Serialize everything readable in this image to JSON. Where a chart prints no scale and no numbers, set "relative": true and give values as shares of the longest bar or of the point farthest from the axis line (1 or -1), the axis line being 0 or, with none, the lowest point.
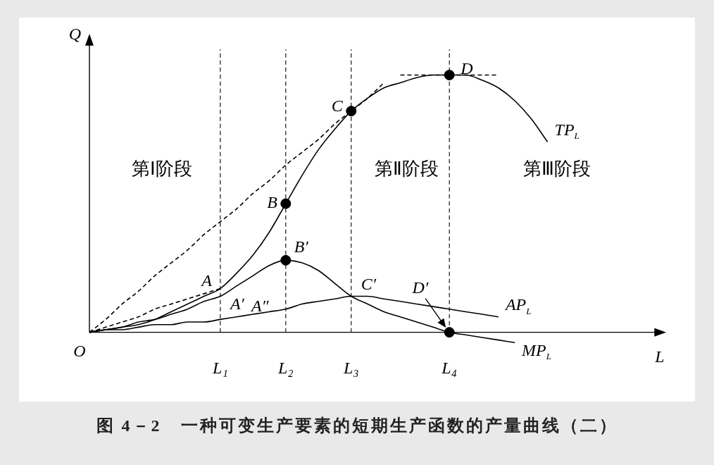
{
  "chart_data": {
    "type": "line",
    "title": "图 4－2　一种可变生产要素的短期生产函数的产量曲线（二）",
    "xlabel": "L",
    "ylabel": "Q",
    "relative": true,
    "tick_labels": "x",
    "grid": false,
    "legend": false,
    "categories": [
      null,
      null,
      null,
      null,
      null,
      null,
      null,
      null,
      "L₁",
      null,
      null,
      null,
      "L₂",
      null,
      null,
      null,
      "L₃",
      null,
      null,
      null,
      null,
      null,
      "L₄",
      null,
      null,
      null,
      null,
      null,
      null,
      null,
      null,
      null,
      null,
      null,
      null
    ],
    "series": [
      {
        "name": "TP$_{L}$",
        "color": "#000000",
        "line_style": "solid",
        "values": [
          0,
          0.01,
          0.02,
          0.03,
          0.05,
          0.08,
          0.11,
          0.14,
          0.17,
          0.23,
          0.3,
          0.39,
          0.5,
          0.61,
          0.71,
          0.79,
          0.86,
          0.91,
          0.95,
          0.97,
          0.99,
          1,
          1,
          1,
          0.98,
          0.95,
          0.9,
          0.83,
          0.74,
          null,
          null,
          null,
          null,
          null,
          null
        ]
      },
      {
        "name": "AP$_{L}$",
        "color": "#000000",
        "line_style": "solid",
        "values": [
          0,
          0.01,
          0.01,
          0.02,
          0.03,
          0.03,
          0.04,
          0.04,
          0.05,
          0.06,
          0.07,
          0.08,
          0.09,
          0.11,
          0.12,
          0.13,
          0.14,
          0.14,
          0.13,
          0.12,
          0.11,
          0.1,
          0.09,
          0.08,
          0.07,
          0.06,
          null,
          null,
          null,
          null,
          null,
          null,
          null,
          null,
          null
        ]
      },
      {
        "name": "MP$_{L}$",
        "color": "#000000",
        "line_style": "solid",
        "values": [
          0,
          0.01,
          0.02,
          0.04,
          0.05,
          0.07,
          0.09,
          0.12,
          0.14,
          0.18,
          0.22,
          0.26,
          0.28,
          0.27,
          0.24,
          0.19,
          0.14,
          0.11,
          0.08,
          0.06,
          0.04,
          0.02,
          0,
          -0.01,
          -0.02,
          -0.03,
          -0.04,
          null,
          null,
          null,
          null,
          null,
          null,
          null,
          null
        ]
      },
      {
        "color": "#000000",
        "line_style": "dashed",
        "values": [
          0,
          0.02,
          0.04,
          0.06,
          0.09,
          0.11,
          0.13,
          0.15,
          0.17,
          null,
          null,
          null,
          null,
          null,
          null,
          null,
          null,
          null,
          null,
          null,
          null,
          null,
          null,
          null,
          null,
          null,
          null,
          null,
          null,
          null,
          null,
          null,
          null,
          null,
          null
        ]
      },
      {
        "color": "#000000",
        "line_style": "dashed",
        "values": [
          0,
          0.05,
          0.11,
          0.16,
          0.22,
          0.27,
          0.32,
          0.38,
          0.43,
          0.48,
          0.54,
          0.59,
          0.65,
          0.7,
          0.75,
          0.81,
          0.86,
          0.91,
          0.97,
          null,
          null,
          null,
          null,
          null,
          null,
          null,
          null,
          null,
          null,
          null,
          null,
          null,
          null,
          null,
          null
        ]
      },
      {
        "color": "#000000",
        "line_style": "dashed",
        "values": [
          null,
          null,
          null,
          null,
          null,
          null,
          null,
          null,
          null,
          null,
          null,
          null,
          null,
          null,
          null,
          null,
          null,
          null,
          null,
          1,
          1,
          1,
          1,
          1,
          1,
          1,
          null,
          null,
          null,
          null,
          null,
          null,
          null,
          null,
          null
        ]
      },
      {
        "type": "scatter",
        "color": "#000000",
        "marker": "circle",
        "x": [
          "L₂",
          "L₂",
          "L₃",
          "L₄",
          "L₄"
        ],
        "values": [
          0.5,
          0.28,
          0.86,
          1,
          0
        ]
      }
    ],
    "ref_lines": [
      {
        "axis": "x",
        "value": "L₁",
        "line_style": "dashed"
      },
      {
        "axis": "x",
        "value": "L₂",
        "line_style": "dashed"
      },
      {
        "axis": "x",
        "value": "L₃",
        "line_style": "dashed"
      },
      {
        "axis": "x",
        "value": "L₄",
        "line_style": "dashed"
      }
    ],
    "annotations": [
      "第Ⅰ阶段",
      "第Ⅱ阶段",
      "第Ⅲ阶段",
      "O",
      {
        "text": "A",
        "x": "L₁",
        "y": 0.17
      },
      {
        "text": "A′",
        "x": "L₁",
        "y": 0.14
      },
      {
        "text": "A″",
        "x": "L₁",
        "y": 0.05
      },
      {
        "text": "B",
        "x": "L₂",
        "y": 0.5
      },
      {
        "text": "B′",
        "x": "L₂",
        "y": 0.28
      },
      {
        "text": "C",
        "x": "L₃",
        "y": 0.86
      },
      {
        "text": "C′",
        "x": "L₃",
        "y": 0.14
      },
      {
        "text": "D",
        "x": "L₄",
        "y": 1
      },
      {
        "text": "D′",
        "x": "L₄",
        "y": 0
      }
    ]
  }
}
